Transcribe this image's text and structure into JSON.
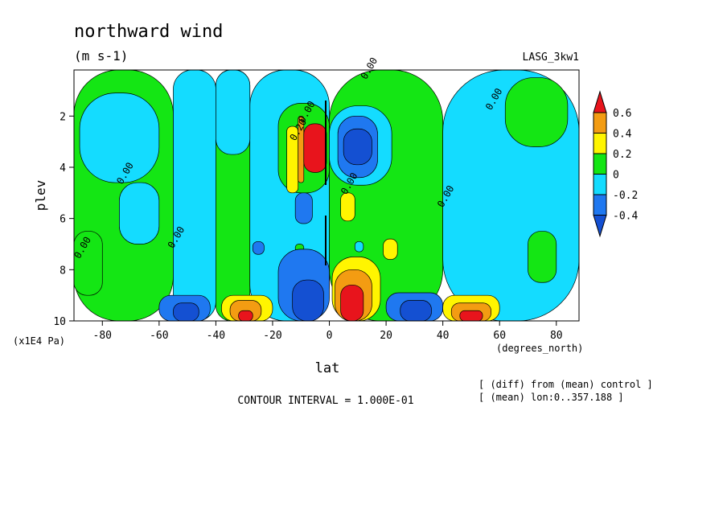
{
  "colors": {
    "red": "#e8141c",
    "orange": "#f39c12",
    "yellow": "#fff500",
    "green": "#14e614",
    "cyan": "#14dcff",
    "blue": "#1f78f0",
    "darkblue": "#1450d2"
  },
  "chart_data": {
    "type": "heatmap",
    "title": "northward wind",
    "units": "(m s-1)",
    "dataset": "LASG_3kw1",
    "xlabel": "lat",
    "x_units": "(degrees_north)",
    "ylabel": "plev",
    "y_units": "(x1E4 Pa)",
    "xlim": [
      -90,
      88
    ],
    "ylim": [
      10,
      0.2
    ],
    "x_ticks": [
      -80,
      -60,
      -40,
      -20,
      0,
      20,
      40,
      60,
      80
    ],
    "y_ticks": [
      2,
      4,
      6,
      8,
      10
    ],
    "legend_levels": [
      "0.6",
      "0.4",
      "0.2",
      "0",
      "-0.2",
      "-0.4"
    ],
    "contour_interval": "CONTOUR INTERVAL = 1.000E-01",
    "notes": [
      "[ (diff) from (mean) control ]",
      "[ (mean) lon:0..357.188 ]"
    ],
    "contour_labels": [
      {
        "text": "0.00",
        "x": 15,
        "y": 0.2
      },
      {
        "text": "0.00",
        "x": 59,
        "y": 1.4
      },
      {
        "text": "0.00",
        "x": -7,
        "y": 1.9
      },
      {
        "text": "0.20",
        "x": -10,
        "y": 2.6
      },
      {
        "text": "0.00",
        "x": -71,
        "y": 4.3
      },
      {
        "text": "0.00",
        "x": 42,
        "y": 5.2
      },
      {
        "text": "0.00",
        "x": 8,
        "y": 4.7
      },
      {
        "text": "0.00",
        "x": -53,
        "y": 6.8
      },
      {
        "text": "0.00",
        "x": -86,
        "y": 7.2
      }
    ],
    "cells": [
      {
        "lat": [
          -90,
          -55
        ],
        "plev": [
          0.2,
          10
        ],
        "level": "green"
      },
      {
        "lat": [
          -55,
          -40
        ],
        "plev": [
          0.2,
          10
        ],
        "level": "cyan"
      },
      {
        "lat": [
          -40,
          -28
        ],
        "plev": [
          0.2,
          10
        ],
        "level": "green"
      },
      {
        "lat": [
          -28,
          0
        ],
        "plev": [
          0.2,
          10
        ],
        "level": "cyan"
      },
      {
        "lat": [
          0,
          40
        ],
        "plev": [
          0.2,
          10
        ],
        "level": "green"
      },
      {
        "lat": [
          40,
          88
        ],
        "plev": [
          0.2,
          10
        ],
        "level": "cyan"
      },
      {
        "lat": [
          -88,
          -60
        ],
        "plev": [
          1.1,
          4.6
        ],
        "level": "cyan"
      },
      {
        "lat": [
          -74,
          -60
        ],
        "plev": [
          4.6,
          7.0
        ],
        "level": "cyan"
      },
      {
        "lat": [
          -90,
          -80
        ],
        "plev": [
          6.5,
          9.0
        ],
        "level": "green"
      },
      {
        "lat": [
          62,
          84
        ],
        "plev": [
          0.5,
          3.2
        ],
        "level": "green"
      },
      {
        "lat": [
          70,
          80
        ],
        "plev": [
          6.5,
          8.5
        ],
        "level": "green"
      },
      {
        "lat": [
          -40,
          -28
        ],
        "plev": [
          0.2,
          3.5
        ],
        "level": "cyan"
      },
      {
        "lat": [
          -18,
          0
        ],
        "plev": [
          1.5,
          5.0
        ],
        "level": "green"
      },
      {
        "lat": [
          -15,
          -11
        ],
        "plev": [
          2.4,
          5.0
        ],
        "level": "yellow"
      },
      {
        "lat": [
          -11,
          -9
        ],
        "plev": [
          2.0,
          4.6
        ],
        "level": "orange"
      },
      {
        "lat": [
          -9,
          -1
        ],
        "plev": [
          2.3,
          4.2
        ],
        "level": "red"
      },
      {
        "lat": [
          0,
          22
        ],
        "plev": [
          1.6,
          4.7
        ],
        "level": "cyan"
      },
      {
        "lat": [
          3,
          17
        ],
        "plev": [
          2.0,
          4.4
        ],
        "level": "blue"
      },
      {
        "lat": [
          5,
          15
        ],
        "plev": [
          2.5,
          3.9
        ],
        "level": "darkblue"
      },
      {
        "lat": [
          -12,
          -6
        ],
        "plev": [
          5.0,
          6.2
        ],
        "level": "blue"
      },
      {
        "lat": [
          4,
          9
        ],
        "plev": [
          5.0,
          6.1
        ],
        "level": "yellow"
      },
      {
        "lat": [
          -27,
          -23
        ],
        "plev": [
          6.9,
          7.4
        ],
        "level": "blue"
      },
      {
        "lat": [
          -12,
          -9
        ],
        "plev": [
          7.0,
          7.3
        ],
        "level": "green"
      },
      {
        "lat": [
          9,
          12
        ],
        "plev": [
          6.9,
          7.3
        ],
        "level": "cyan"
      },
      {
        "lat": [
          19,
          24
        ],
        "plev": [
          6.8,
          7.6
        ],
        "level": "yellow"
      },
      {
        "lat": [
          -18,
          0
        ],
        "plev": [
          7.2,
          10
        ],
        "level": "blue"
      },
      {
        "lat": [
          -13,
          -2
        ],
        "plev": [
          8.4,
          10
        ],
        "level": "darkblue"
      },
      {
        "lat": [
          1,
          18
        ],
        "plev": [
          7.5,
          10
        ],
        "level": "yellow"
      },
      {
        "lat": [
          2,
          15
        ],
        "plev": [
          8.0,
          10
        ],
        "level": "orange"
      },
      {
        "lat": [
          4,
          12
        ],
        "plev": [
          8.6,
          10
        ],
        "level": "red"
      },
      {
        "lat": [
          -60,
          -42
        ],
        "plev": [
          9.0,
          10
        ],
        "level": "blue"
      },
      {
        "lat": [
          -55,
          -46
        ],
        "plev": [
          9.3,
          10
        ],
        "level": "darkblue"
      },
      {
        "lat": [
          -38,
          -20
        ],
        "plev": [
          9.0,
          10
        ],
        "level": "yellow"
      },
      {
        "lat": [
          -35,
          -24
        ],
        "plev": [
          9.2,
          10
        ],
        "level": "orange"
      },
      {
        "lat": [
          -32,
          -27
        ],
        "plev": [
          9.6,
          10
        ],
        "level": "red"
      },
      {
        "lat": [
          20,
          40
        ],
        "plev": [
          8.9,
          10
        ],
        "level": "blue"
      },
      {
        "lat": [
          25,
          36
        ],
        "plev": [
          9.2,
          10
        ],
        "level": "darkblue"
      },
      {
        "lat": [
          40,
          60
        ],
        "plev": [
          9.0,
          10
        ],
        "level": "yellow"
      },
      {
        "lat": [
          43,
          57
        ],
        "plev": [
          9.3,
          10
        ],
        "level": "orange"
      },
      {
        "lat": [
          46,
          54
        ],
        "plev": [
          9.6,
          10
        ],
        "level": "red"
      }
    ]
  }
}
